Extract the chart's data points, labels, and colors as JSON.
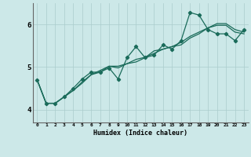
{
  "title": "",
  "xlabel": "Humidex (Indice chaleur)",
  "background_color": "#cce8e8",
  "line_color": "#1a6b5a",
  "grid_color": "#aacccc",
  "x_ticks": [
    0,
    1,
    2,
    3,
    4,
    5,
    6,
    7,
    8,
    9,
    10,
    11,
    12,
    13,
    14,
    15,
    16,
    17,
    18,
    19,
    20,
    21,
    22,
    23
  ],
  "xlim": [
    -0.5,
    23.5
  ],
  "ylim": [
    3.7,
    6.5
  ],
  "y_ticks": [
    4,
    5,
    6
  ],
  "line1_x": [
    0,
    1,
    2,
    3,
    4,
    5,
    6,
    7,
    8,
    9,
    10,
    11,
    12,
    13,
    14,
    15,
    16,
    17,
    18,
    19,
    20,
    21,
    22,
    23
  ],
  "line1_y": [
    4.7,
    4.15,
    4.15,
    4.3,
    4.45,
    4.65,
    4.82,
    4.88,
    5.02,
    5.02,
    5.08,
    5.18,
    5.23,
    5.32,
    5.42,
    5.48,
    5.58,
    5.72,
    5.82,
    5.92,
    6.02,
    6.02,
    5.88,
    5.82
  ],
  "line2_x": [
    0,
    1,
    2,
    3,
    4,
    5,
    6,
    7,
    8,
    9,
    10,
    11,
    12,
    13,
    14,
    15,
    16,
    17,
    18,
    19,
    20,
    21,
    22,
    23
  ],
  "line2_y": [
    4.7,
    4.15,
    4.15,
    4.3,
    4.5,
    4.72,
    4.88,
    4.88,
    4.98,
    4.72,
    5.22,
    5.48,
    5.22,
    5.28,
    5.52,
    5.42,
    5.62,
    6.28,
    6.22,
    5.88,
    5.78,
    5.78,
    5.62,
    5.88
  ],
  "line3_x": [
    0,
    1,
    2,
    3,
    4,
    5,
    6,
    7,
    8,
    9,
    10,
    11,
    12,
    13,
    14,
    15,
    16,
    17,
    18,
    19,
    20,
    21,
    22,
    23
  ],
  "line3_y": [
    4.7,
    4.15,
    4.15,
    4.3,
    4.45,
    4.62,
    4.82,
    4.92,
    5.02,
    4.98,
    5.08,
    5.12,
    5.22,
    5.38,
    5.42,
    5.48,
    5.52,
    5.68,
    5.78,
    5.92,
    5.98,
    5.98,
    5.82,
    5.78
  ]
}
